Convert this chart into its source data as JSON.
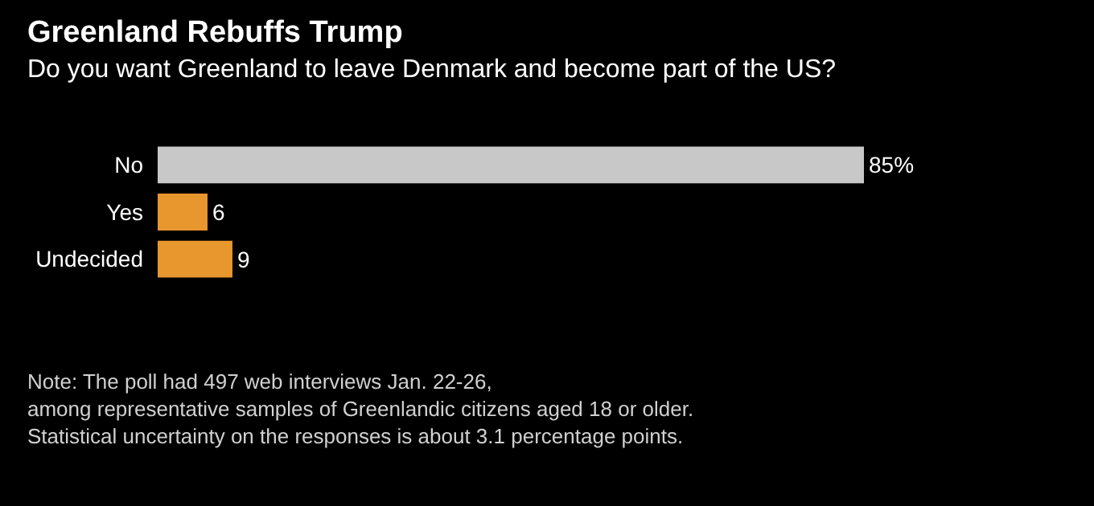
{
  "chart_data": {
    "type": "bar",
    "orientation": "horizontal",
    "title": "Greenland Rebuffs Trump",
    "subtitle": "Do you want Greenland to leave Denmark and become part of the US?",
    "categories": [
      "No",
      "Yes",
      "Undecided"
    ],
    "values": [
      85,
      6,
      9
    ],
    "colors": [
      "#c8c8c8",
      "#e8962e",
      "#e8962e"
    ],
    "value_labels": [
      "85%",
      "6",
      "9"
    ],
    "annotations": [
      "Note: The poll had 497 web interviews Jan. 22-26,\namong representative samples of Greenlandic citizens aged 18 or older.\nStatistical uncertainty on the responses is about 3.1 percentage points."
    ]
  }
}
